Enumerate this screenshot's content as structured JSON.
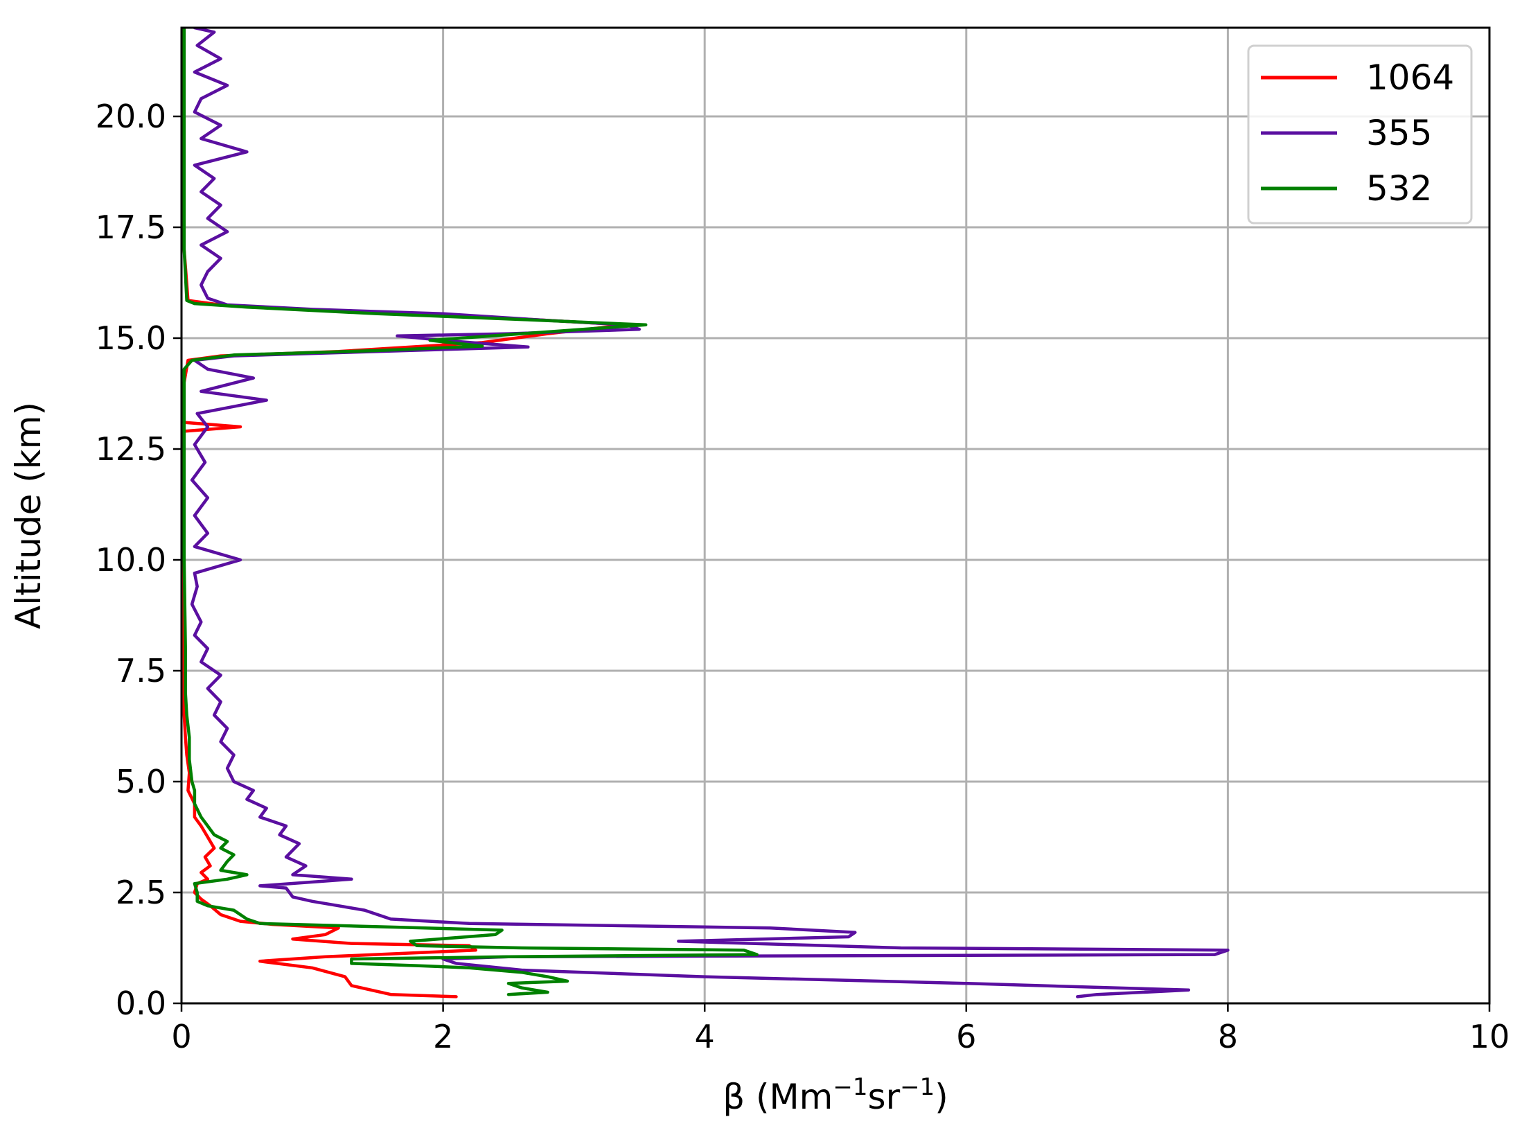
{
  "chart_data": {
    "type": "line",
    "title": "",
    "xlabel": "β (Mm",
    "xlabel_sup1": "−1",
    "xlabel_mid": "sr",
    "xlabel_sup2": "−1",
    "xlabel_end": ")",
    "ylabel": "Altitude (km)",
    "xlim": [
      0,
      10
    ],
    "ylim": [
      0,
      22
    ],
    "xticks": [
      0,
      2,
      4,
      6,
      8,
      10
    ],
    "xtick_labels": [
      "0",
      "2",
      "4",
      "6",
      "8",
      "10"
    ],
    "yticks": [
      0,
      2.5,
      5,
      7.5,
      10,
      12.5,
      15,
      17.5,
      20
    ],
    "ytick_labels": [
      "0.0",
      "2.5",
      "5.0",
      "7.5",
      "10.0",
      "12.5",
      "15.0",
      "17.5",
      "20.0"
    ],
    "grid": true,
    "legend_position": "top-right",
    "series": [
      {
        "name": "1064",
        "color": "#ff0000",
        "points": [
          [
            2.1,
            0.15
          ],
          [
            1.6,
            0.2
          ],
          [
            1.3,
            0.4
          ],
          [
            1.25,
            0.6
          ],
          [
            1.0,
            0.8
          ],
          [
            0.6,
            0.95
          ],
          [
            1.1,
            1.05
          ],
          [
            2.25,
            1.2
          ],
          [
            2.2,
            1.3
          ],
          [
            1.3,
            1.35
          ],
          [
            0.85,
            1.45
          ],
          [
            1.1,
            1.55
          ],
          [
            1.2,
            1.7
          ],
          [
            0.7,
            1.78
          ],
          [
            0.45,
            1.85
          ],
          [
            0.3,
            2.0
          ],
          [
            0.22,
            2.2
          ],
          [
            0.15,
            2.35
          ],
          [
            0.1,
            2.5
          ],
          [
            0.12,
            2.7
          ],
          [
            0.2,
            2.8
          ],
          [
            0.15,
            2.95
          ],
          [
            0.22,
            3.1
          ],
          [
            0.18,
            3.3
          ],
          [
            0.25,
            3.5
          ],
          [
            0.2,
            3.75
          ],
          [
            0.15,
            4.0
          ],
          [
            0.1,
            4.2
          ],
          [
            0.1,
            4.5
          ],
          [
            0.05,
            4.8
          ],
          [
            0.06,
            5.2
          ],
          [
            0.04,
            5.6
          ],
          [
            0.03,
            6.0
          ],
          [
            0.02,
            6.5
          ],
          [
            0.02,
            8.0
          ],
          [
            0.02,
            10.0
          ],
          [
            0.02,
            12.0
          ],
          [
            0.02,
            12.9
          ],
          [
            0.45,
            13.0
          ],
          [
            0.02,
            13.1
          ],
          [
            0.02,
            14.0
          ],
          [
            0.05,
            14.5
          ],
          [
            0.3,
            14.6
          ],
          [
            1.2,
            14.7
          ],
          [
            2.3,
            14.9
          ],
          [
            2.8,
            15.1
          ],
          [
            3.4,
            15.3
          ],
          [
            2.5,
            15.45
          ],
          [
            1.3,
            15.6
          ],
          [
            0.3,
            15.75
          ],
          [
            0.05,
            15.85
          ],
          [
            0.02,
            17.0
          ],
          [
            0.02,
            19.0
          ],
          [
            0.02,
            21.0
          ],
          [
            0.02,
            22.0
          ]
        ]
      },
      {
        "name": "355",
        "color": "#5a0fa0",
        "points": [
          [
            6.85,
            0.15
          ],
          [
            7.0,
            0.2
          ],
          [
            7.7,
            0.3
          ],
          [
            6.0,
            0.45
          ],
          [
            4.0,
            0.6
          ],
          [
            2.6,
            0.75
          ],
          [
            2.1,
            0.9
          ],
          [
            2.0,
            1.0
          ],
          [
            2.5,
            1.05
          ],
          [
            7.9,
            1.1
          ],
          [
            8.0,
            1.2
          ],
          [
            5.5,
            1.25
          ],
          [
            3.8,
            1.4
          ],
          [
            5.1,
            1.5
          ],
          [
            5.15,
            1.6
          ],
          [
            4.5,
            1.7
          ],
          [
            2.2,
            1.8
          ],
          [
            1.9,
            1.85
          ],
          [
            1.6,
            1.9
          ],
          [
            1.5,
            2.0
          ],
          [
            1.4,
            2.1
          ],
          [
            1.2,
            2.2
          ],
          [
            1.0,
            2.3
          ],
          [
            0.85,
            2.4
          ],
          [
            0.8,
            2.6
          ],
          [
            0.6,
            2.65
          ],
          [
            1.3,
            2.8
          ],
          [
            0.85,
            2.9
          ],
          [
            0.95,
            3.1
          ],
          [
            0.8,
            3.3
          ],
          [
            0.9,
            3.6
          ],
          [
            0.75,
            3.8
          ],
          [
            0.8,
            4.0
          ],
          [
            0.6,
            4.2
          ],
          [
            0.65,
            4.4
          ],
          [
            0.5,
            4.6
          ],
          [
            0.55,
            4.8
          ],
          [
            0.4,
            5.0
          ],
          [
            0.35,
            5.3
          ],
          [
            0.4,
            5.6
          ],
          [
            0.3,
            5.9
          ],
          [
            0.35,
            6.2
          ],
          [
            0.25,
            6.5
          ],
          [
            0.3,
            6.8
          ],
          [
            0.2,
            7.1
          ],
          [
            0.3,
            7.4
          ],
          [
            0.15,
            7.7
          ],
          [
            0.2,
            8.0
          ],
          [
            0.1,
            8.3
          ],
          [
            0.15,
            8.6
          ],
          [
            0.08,
            9.0
          ],
          [
            0.12,
            9.4
          ],
          [
            0.1,
            9.7
          ],
          [
            0.45,
            10.0
          ],
          [
            0.1,
            10.3
          ],
          [
            0.2,
            10.6
          ],
          [
            0.1,
            11.0
          ],
          [
            0.2,
            11.4
          ],
          [
            0.08,
            11.8
          ],
          [
            0.18,
            12.2
          ],
          [
            0.1,
            12.6
          ],
          [
            0.2,
            13.0
          ],
          [
            0.12,
            13.3
          ],
          [
            0.65,
            13.6
          ],
          [
            0.15,
            13.8
          ],
          [
            0.55,
            14.1
          ],
          [
            0.2,
            14.3
          ],
          [
            0.1,
            14.5
          ],
          [
            0.4,
            14.6
          ],
          [
            1.5,
            14.7
          ],
          [
            2.65,
            14.8
          ],
          [
            2.0,
            14.95
          ],
          [
            1.65,
            15.05
          ],
          [
            2.5,
            15.1
          ],
          [
            3.5,
            15.2
          ],
          [
            3.4,
            15.3
          ],
          [
            2.8,
            15.4
          ],
          [
            2.0,
            15.55
          ],
          [
            1.0,
            15.65
          ],
          [
            0.35,
            15.75
          ],
          [
            0.2,
            15.9
          ],
          [
            0.15,
            16.2
          ],
          [
            0.2,
            16.5
          ],
          [
            0.3,
            16.8
          ],
          [
            0.15,
            17.1
          ],
          [
            0.35,
            17.4
          ],
          [
            0.2,
            17.7
          ],
          [
            0.3,
            18.0
          ],
          [
            0.15,
            18.3
          ],
          [
            0.25,
            18.6
          ],
          [
            0.1,
            18.9
          ],
          [
            0.5,
            19.2
          ],
          [
            0.15,
            19.5
          ],
          [
            0.3,
            19.8
          ],
          [
            0.1,
            20.1
          ],
          [
            0.15,
            20.4
          ],
          [
            0.35,
            20.7
          ],
          [
            0.1,
            21.0
          ],
          [
            0.3,
            21.3
          ],
          [
            0.12,
            21.6
          ],
          [
            0.25,
            21.9
          ],
          [
            0.1,
            22.0
          ]
        ]
      },
      {
        "name": "532",
        "color": "#008000",
        "points": [
          [
            2.5,
            0.2
          ],
          [
            2.8,
            0.25
          ],
          [
            2.6,
            0.35
          ],
          [
            2.5,
            0.45
          ],
          [
            2.95,
            0.5
          ],
          [
            2.8,
            0.6
          ],
          [
            2.6,
            0.7
          ],
          [
            2.2,
            0.8
          ],
          [
            1.8,
            0.85
          ],
          [
            1.3,
            0.9
          ],
          [
            1.3,
            1.0
          ],
          [
            2.5,
            1.05
          ],
          [
            4.4,
            1.1
          ],
          [
            4.3,
            1.2
          ],
          [
            2.6,
            1.25
          ],
          [
            1.8,
            1.3
          ],
          [
            1.75,
            1.4
          ],
          [
            2.4,
            1.55
          ],
          [
            2.45,
            1.65
          ],
          [
            1.6,
            1.72
          ],
          [
            0.6,
            1.8
          ],
          [
            0.5,
            1.9
          ],
          [
            0.45,
            2.0
          ],
          [
            0.4,
            2.1
          ],
          [
            0.2,
            2.2
          ],
          [
            0.12,
            2.3
          ],
          [
            0.12,
            2.5
          ],
          [
            0.1,
            2.7
          ],
          [
            0.35,
            2.8
          ],
          [
            0.5,
            2.9
          ],
          [
            0.3,
            3.0
          ],
          [
            0.35,
            3.2
          ],
          [
            0.4,
            3.35
          ],
          [
            0.3,
            3.5
          ],
          [
            0.35,
            3.65
          ],
          [
            0.25,
            3.8
          ],
          [
            0.2,
            4.0
          ],
          [
            0.15,
            4.2
          ],
          [
            0.1,
            4.5
          ],
          [
            0.1,
            4.8
          ],
          [
            0.08,
            5.0
          ],
          [
            0.06,
            5.5
          ],
          [
            0.06,
            6.0
          ],
          [
            0.04,
            6.5
          ],
          [
            0.03,
            7.0
          ],
          [
            0.03,
            8.0
          ],
          [
            0.02,
            10.0
          ],
          [
            0.02,
            12.0
          ],
          [
            0.02,
            13.5
          ],
          [
            0.02,
            14.3
          ],
          [
            0.08,
            14.5
          ],
          [
            0.4,
            14.62
          ],
          [
            1.5,
            14.72
          ],
          [
            2.3,
            14.82
          ],
          [
            1.9,
            14.95
          ],
          [
            2.6,
            15.1
          ],
          [
            3.55,
            15.3
          ],
          [
            2.6,
            15.42
          ],
          [
            1.5,
            15.55
          ],
          [
            0.5,
            15.7
          ],
          [
            0.1,
            15.78
          ],
          [
            0.04,
            15.85
          ],
          [
            0.02,
            17.0
          ],
          [
            0.02,
            18.5
          ],
          [
            0.02,
            20.0
          ],
          [
            0.02,
            22.0
          ]
        ]
      }
    ]
  }
}
